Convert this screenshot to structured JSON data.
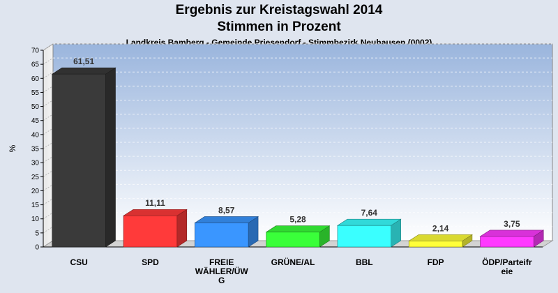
{
  "chart_data": {
    "type": "bar",
    "title": "Ergebnis zur Kreistagswahl 2014",
    "subtitle": "Stimmen in Prozent",
    "caption": "Landkreis Bamberg - Gemeinde Priesendorf - Stimmbezirk Neuhausen (0002)",
    "ylabel": "%",
    "xlabel": "",
    "ylim": [
      0,
      70
    ],
    "ytick_step": 5,
    "grid": true,
    "categories": [
      [
        "CSU"
      ],
      [
        "SPD"
      ],
      [
        "FREIE",
        "WÄHLER/ÜW",
        "G"
      ],
      [
        "GRÜNE/AL"
      ],
      [
        "BBL"
      ],
      [
        "FDP"
      ],
      [
        "ÖDP/Parteifr",
        "eie"
      ]
    ],
    "values": [
      61.51,
      11.11,
      8.57,
      5.28,
      7.64,
      2.14,
      3.75
    ],
    "value_labels": [
      "61,51",
      "11,11",
      "8,57",
      "5,28",
      "7,64",
      "2,14",
      "3,75"
    ],
    "colors": [
      "#3a3a3a",
      "#ff3a3a",
      "#3a96ff",
      "#3aff3a",
      "#3affff",
      "#ffff3a",
      "#ff3aff"
    ]
  }
}
